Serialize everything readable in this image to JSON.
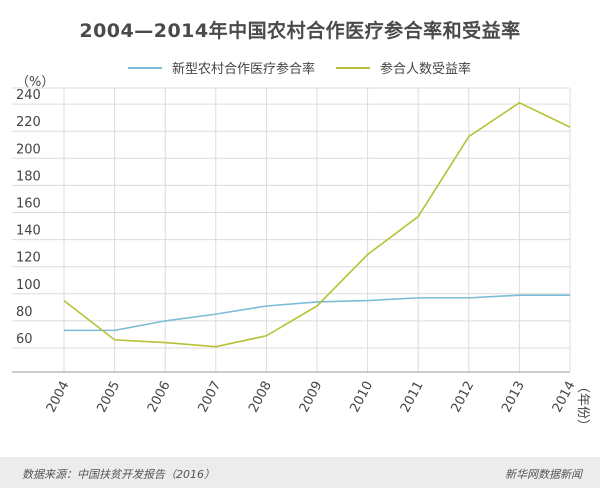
{
  "title": "2004—2014年中国农村合作医疗参合率和受益率",
  "source": "数据来源：中国扶贫开发报告（2016）",
  "brand": "新华网数据新闻",
  "colors": {
    "participation": "#7bbcd6",
    "benefit": "#b7c137",
    "grid": "#dcdcdc",
    "axis": "#999999"
  },
  "chart_data": {
    "type": "line",
    "ylabel": "（%）",
    "xlabel": "（年份）",
    "x": [
      "2004",
      "2005",
      "2006",
      "2007",
      "2008",
      "2009",
      "2010",
      "2011",
      "2012",
      "2013",
      "2014"
    ],
    "yticks": [
      "60",
      "80",
      "100",
      "120",
      "140",
      "160",
      "180",
      "200",
      "220",
      "240"
    ],
    "ylim": [
      50,
      250
    ],
    "grid": true,
    "legend_position": "top",
    "series": [
      {
        "name": "新型农村合作医疗参合率",
        "values": [
          73,
          73,
          80,
          85,
          91,
          94,
          95,
          97,
          97,
          99,
          99
        ]
      },
      {
        "name": "参合人数受益率",
        "values": [
          95,
          66,
          64,
          61,
          69,
          91,
          129,
          157,
          216,
          241,
          223
        ]
      }
    ]
  }
}
